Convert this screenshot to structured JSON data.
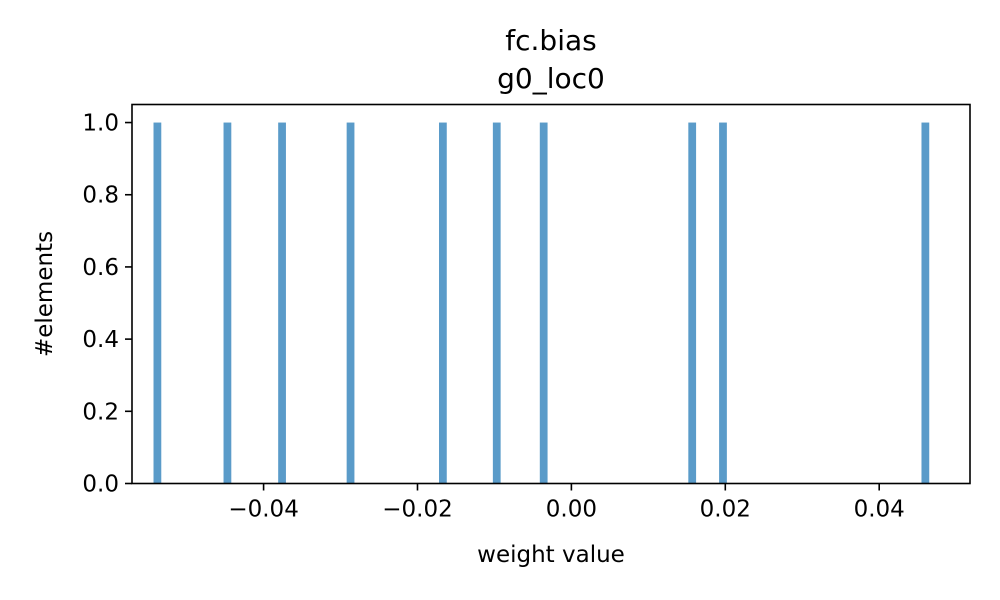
{
  "chart_data": {
    "type": "bar",
    "title": "fc.bias",
    "subtitle": "g0_loc0",
    "xlabel": "weight value",
    "ylabel": "#elements",
    "bar_color": "#5a9bc9",
    "xlim": [
      -0.0571,
      0.0518
    ],
    "ylim": [
      0,
      1.05
    ],
    "xticks": [
      -0.04,
      -0.02,
      0.0,
      0.02,
      0.04
    ],
    "xtick_labels": [
      "−0.04",
      "−0.02",
      "0.00",
      "0.02",
      "0.04"
    ],
    "yticks": [
      0.0,
      0.2,
      0.4,
      0.6,
      0.8,
      1.0
    ],
    "ytick_labels": [
      "0.0",
      "0.2",
      "0.4",
      "0.6",
      "0.8",
      "1.0"
    ],
    "bin_width": 0.00101,
    "bars": [
      {
        "x": -0.0538,
        "count": 1
      },
      {
        "x": -0.0447,
        "count": 1
      },
      {
        "x": -0.0376,
        "count": 1
      },
      {
        "x": -0.0287,
        "count": 1
      },
      {
        "x": -0.0167,
        "count": 1
      },
      {
        "x": -0.0097,
        "count": 1
      },
      {
        "x": -0.0036,
        "count": 1
      },
      {
        "x": 0.0157,
        "count": 1
      },
      {
        "x": 0.0197,
        "count": 1
      },
      {
        "x": 0.046,
        "count": 1
      }
    ],
    "grid": false,
    "legend": "none"
  }
}
